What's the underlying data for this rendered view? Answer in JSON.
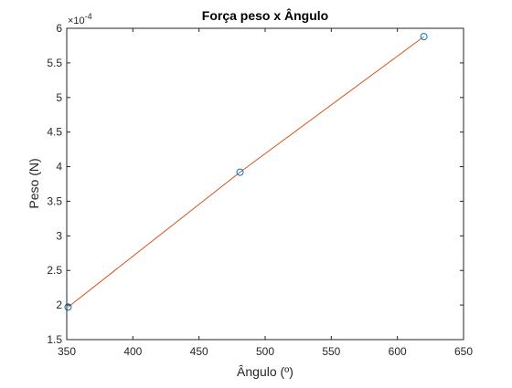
{
  "chart_data": {
    "type": "line",
    "title": "Força peso x Ângulo",
    "xlabel": "Ângulo (º)",
    "ylabel": "Peso (N)",
    "y_exponent_label": "×10",
    "y_exponent_power": "-4",
    "xlim": [
      350,
      650
    ],
    "ylim": [
      1.5,
      6
    ],
    "x_ticks": [
      350,
      400,
      450,
      500,
      550,
      600,
      650
    ],
    "y_ticks": [
      1.5,
      2,
      2.5,
      3,
      3.5,
      4,
      4.5,
      5,
      5.5,
      6
    ],
    "y_tick_labels": [
      "1.5",
      "2",
      "2.5",
      "3",
      "3.5",
      "4",
      "4.5",
      "5",
      "5.5",
      "6"
    ],
    "grid": false,
    "series": [
      {
        "style": "markers",
        "marker": "circle",
        "color": "#0072BD",
        "x": [
          351,
          481,
          620
        ],
        "y": [
          1.97,
          3.92,
          5.88
        ]
      },
      {
        "style": "line",
        "color": "#D95319",
        "x": [
          351,
          481,
          620
        ],
        "y": [
          1.97,
          3.92,
          5.88
        ]
      }
    ]
  }
}
